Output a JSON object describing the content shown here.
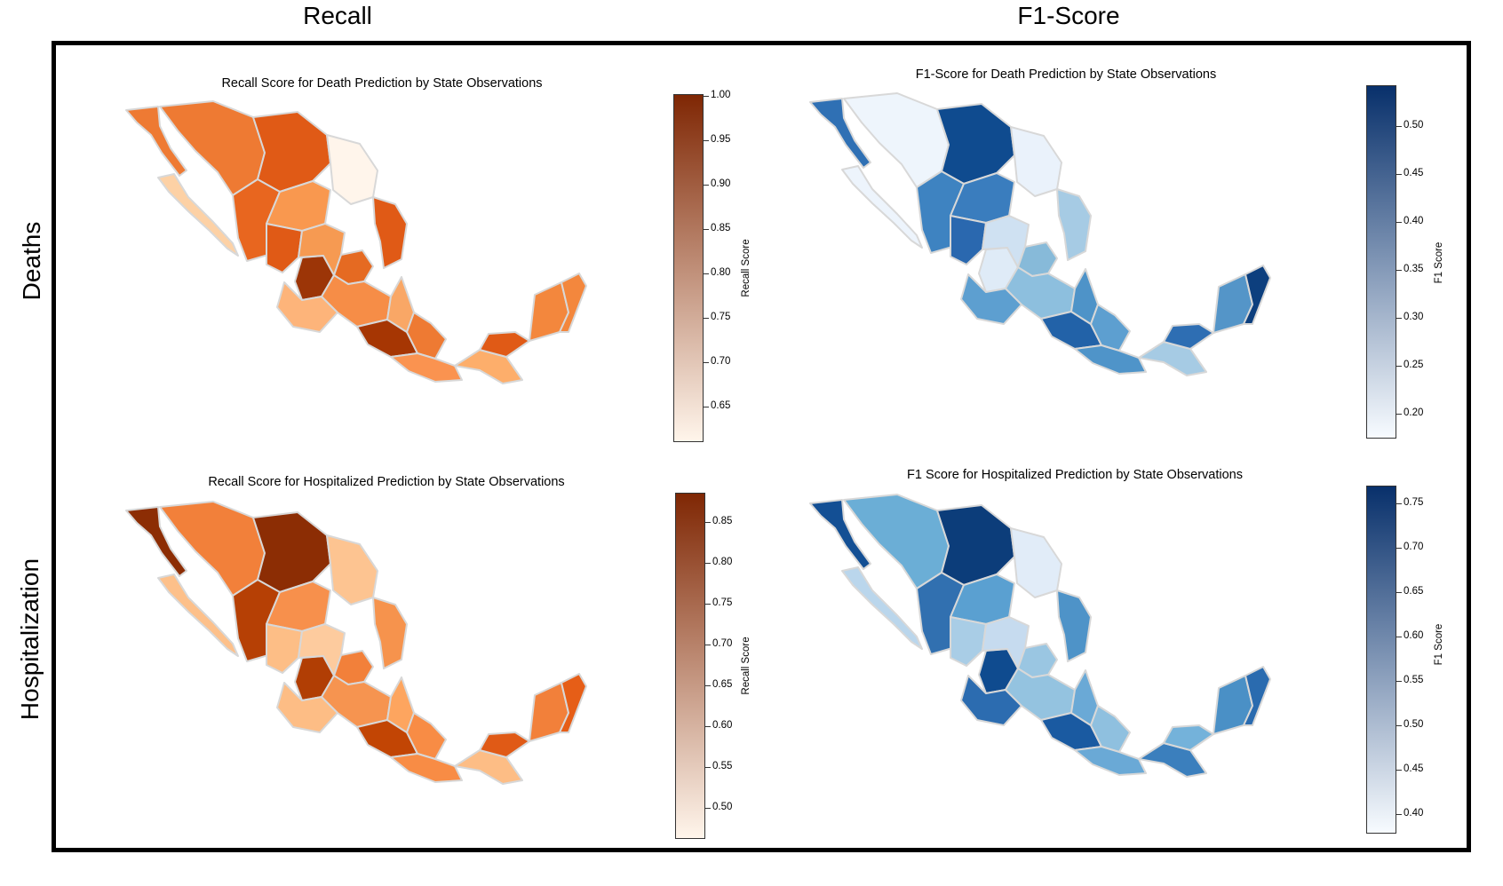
{
  "column_headers": [
    "Recall",
    "F1-Score"
  ],
  "row_headers": [
    "Deaths",
    "Hospitalization"
  ],
  "panels": [
    {
      "title": "Recall Score for Death Prediction by State Observations",
      "colorbar_label": "Recall Score",
      "ticks": [
        "1.00",
        "0.95",
        "0.90",
        "0.85",
        "0.80",
        "0.75",
        "0.70",
        "0.65"
      ],
      "color_low": "#fff5eb",
      "color_high": "#7f2704",
      "colormap": "Oranges"
    },
    {
      "title": "F1-Score for Death Prediction by State Observations",
      "colorbar_label": "F1 Score",
      "ticks": [
        "0.50",
        "0.45",
        "0.40",
        "0.35",
        "0.30",
        "0.25",
        "0.20"
      ],
      "color_low": "#f7fbff",
      "color_high": "#08306b",
      "colormap": "Blues"
    },
    {
      "title": "Recall Score for Hospitalized Prediction by State Observations",
      "colorbar_label": "Recall Score",
      "ticks": [
        "0.85",
        "0.80",
        "0.75",
        "0.70",
        "0.65",
        "0.60",
        "0.55",
        "0.50"
      ],
      "color_low": "#fff5eb",
      "color_high": "#7f2704",
      "colormap": "Oranges"
    },
    {
      "title": "F1 Score for Hospitalized Prediction by State Observations",
      "colorbar_label": "F1 Score",
      "ticks": [
        "0.75",
        "0.70",
        "0.65",
        "0.60",
        "0.55",
        "0.50",
        "0.45",
        "0.40"
      ],
      "color_low": "#f7fbff",
      "color_high": "#08306b",
      "colormap": "Blues"
    }
  ],
  "region_colors": {
    "deaths_recall": [
      "#ee7a33",
      "#fdd1a5",
      "#ee7a33",
      "#e05a16",
      "#e8661f",
      "#fff5eb",
      "#e05a16",
      "#f9984f",
      "#e05a16",
      "#9c3507",
      "#f69a52",
      "#e56a22",
      "#fdb47a",
      "#f68d47",
      "#a63603",
      "#f9a766",
      "#ee7a33",
      "#fa9350",
      "#fdae6b",
      "#e05a16",
      "#f3873d",
      "#f3873d"
    ],
    "deaths_f1": [
      "#2f70b4",
      "#edf4fc",
      "#eef5fc",
      "#0f4b8f",
      "#3e83c1",
      "#eaf2fb",
      "#a6cbe4",
      "#3a7dbe",
      "#2a68af",
      "#dfebf7",
      "#cfe1f2",
      "#87bad9",
      "#5d9fd0",
      "#8dbfde",
      "#2262a8",
      "#4e93c8",
      "#5d9fd0",
      "#4f94c9",
      "#a6cbe4",
      "#2e6eb3",
      "#5495c8",
      "#0d3f7e"
    ],
    "hosp_recall": [
      "#8c2d04",
      "#fdc08a",
      "#f2803a",
      "#8c2d04",
      "#b64005",
      "#fdc491",
      "#f6934d",
      "#f7904c",
      "#fdbe86",
      "#b13e04",
      "#fdcb9e",
      "#f2803a",
      "#fdbd85",
      "#f69450",
      "#c24504",
      "#fda55f",
      "#f88c45",
      "#f88c45",
      "#fdbd85",
      "#e05a16",
      "#f2803a",
      "#e65e17"
    ],
    "hosp_f1": [
      "#134f94",
      "#bad6ec",
      "#6baed6",
      "#0c3d7a",
      "#3170b0",
      "#e1ecf8",
      "#4e93c8",
      "#5aa0d1",
      "#a9cde6",
      "#0f4b8f",
      "#c6dbef",
      "#9ac6e2",
      "#2c6cb0",
      "#94c3e0",
      "#1a5aa1",
      "#6aa9d6",
      "#8fc0df",
      "#6aa9d6",
      "#3b7fbd",
      "#74b2da",
      "#4a90c6",
      "#2a6baf"
    ]
  }
}
